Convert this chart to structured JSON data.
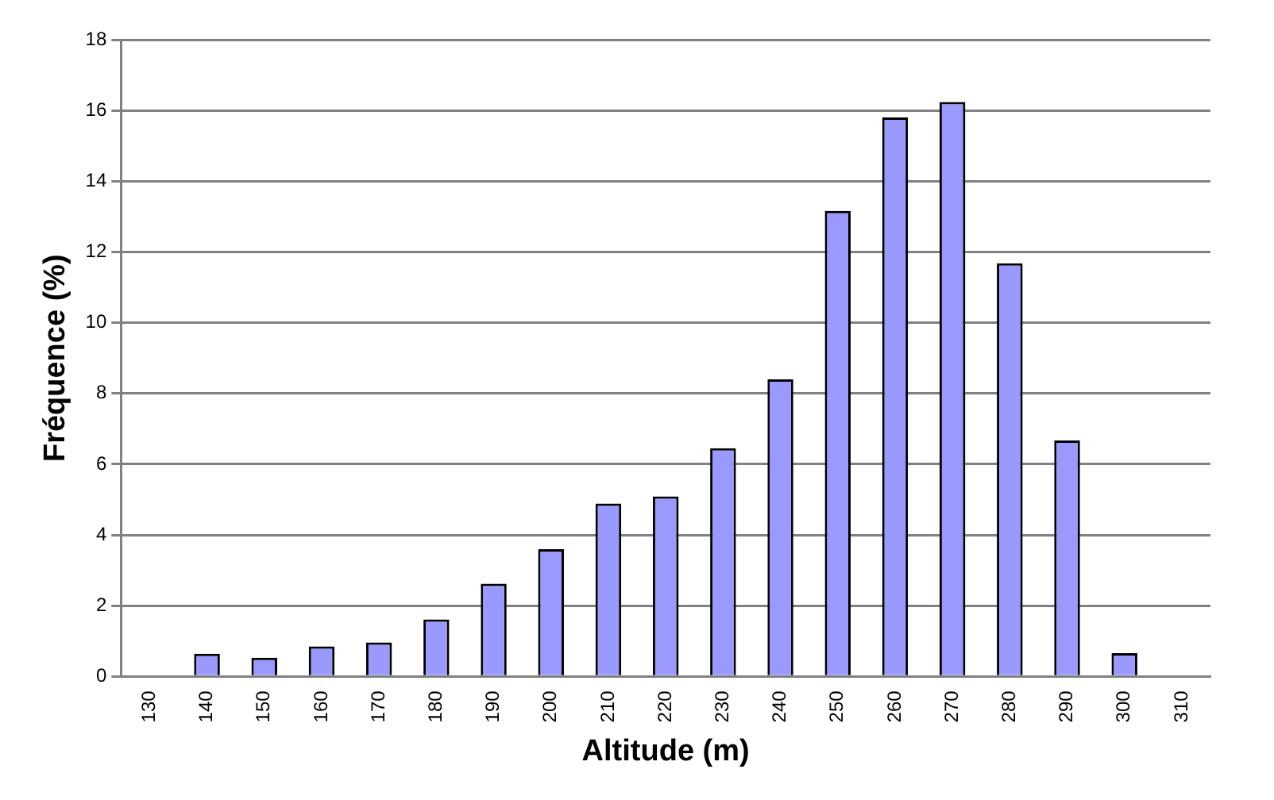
{
  "chart_data": {
    "type": "bar",
    "xlabel": "Altitude (m)",
    "ylabel": "Fréquence (%)",
    "categories": [
      "130",
      "140",
      "150",
      "160",
      "170",
      "180",
      "190",
      "200",
      "210",
      "220",
      "230",
      "240",
      "250",
      "260",
      "270",
      "280",
      "290",
      "300",
      "310"
    ],
    "values": [
      0,
      0.64,
      0.53,
      0.85,
      0.96,
      1.61,
      2.62,
      3.6,
      4.89,
      5.09,
      6.45,
      8.4,
      13.16,
      15.8,
      16.24,
      11.68,
      6.67,
      0.66,
      0
    ],
    "color": "#9999ff",
    "ylim": [
      0,
      18
    ],
    "yticks": [
      0,
      2,
      4,
      6,
      8,
      10,
      12,
      14,
      16,
      18
    ],
    "grid": "y",
    "legend": false
  }
}
